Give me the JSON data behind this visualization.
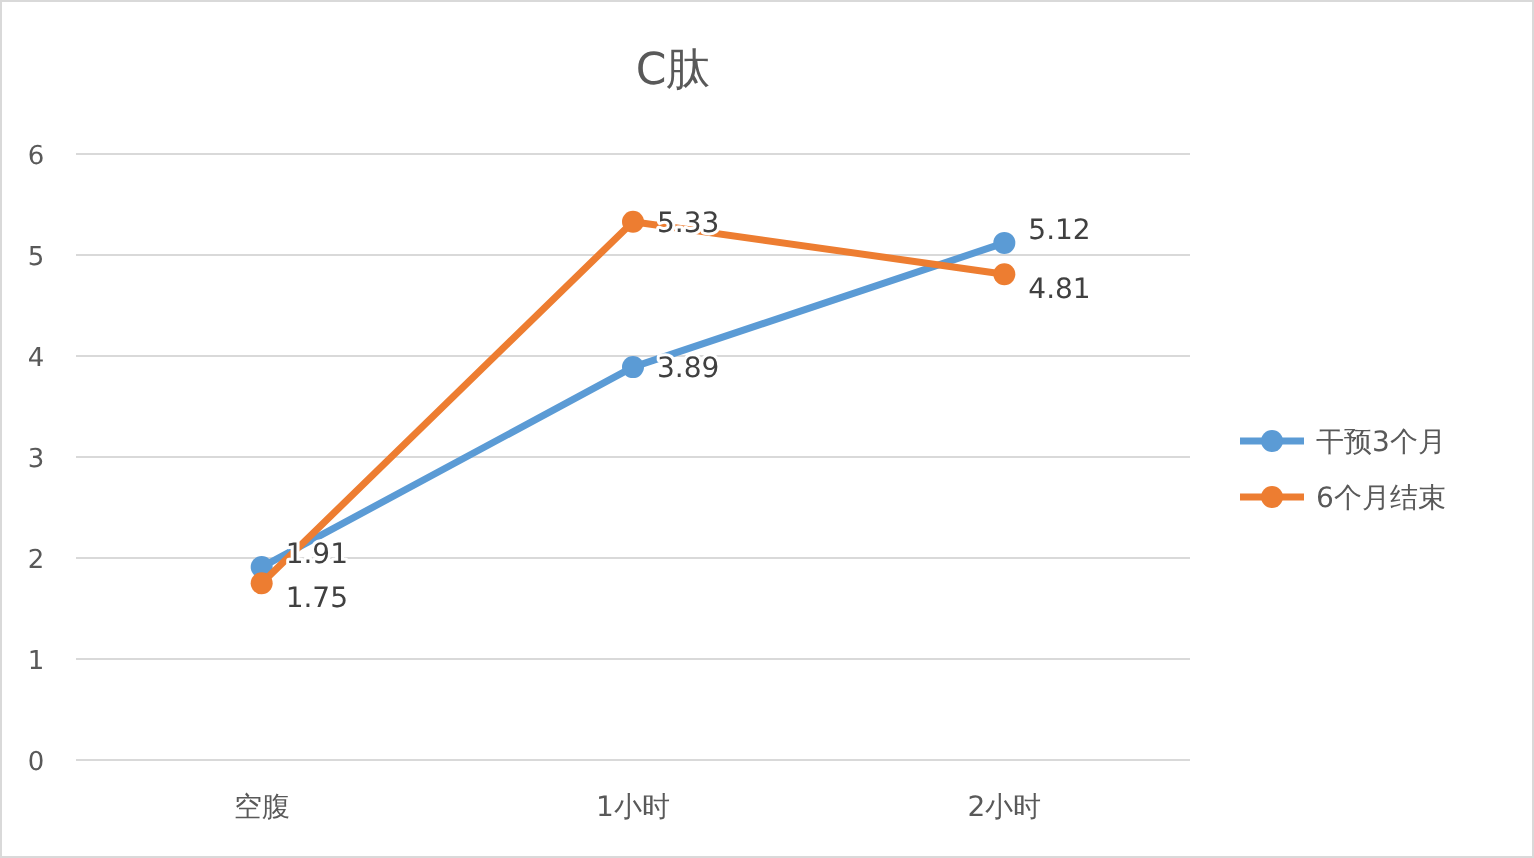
{
  "chart_data": {
    "type": "line",
    "title": "C肽",
    "categories": [
      "空腹",
      "1小时",
      "2小时"
    ],
    "series": [
      {
        "name": "干预3个月",
        "color": "#5b9bd5",
        "values": [
          1.91,
          3.89,
          5.12
        ]
      },
      {
        "name": "6个月结束",
        "color": "#ed7d31",
        "values": [
          1.75,
          5.33,
          4.81
        ]
      }
    ],
    "ylim": [
      0,
      6
    ],
    "yticks": [
      0,
      1,
      2,
      3,
      4,
      5,
      6
    ],
    "grid": "y",
    "legend": "right",
    "marker": "circle",
    "line_style": "solid",
    "data_labels": true
  }
}
